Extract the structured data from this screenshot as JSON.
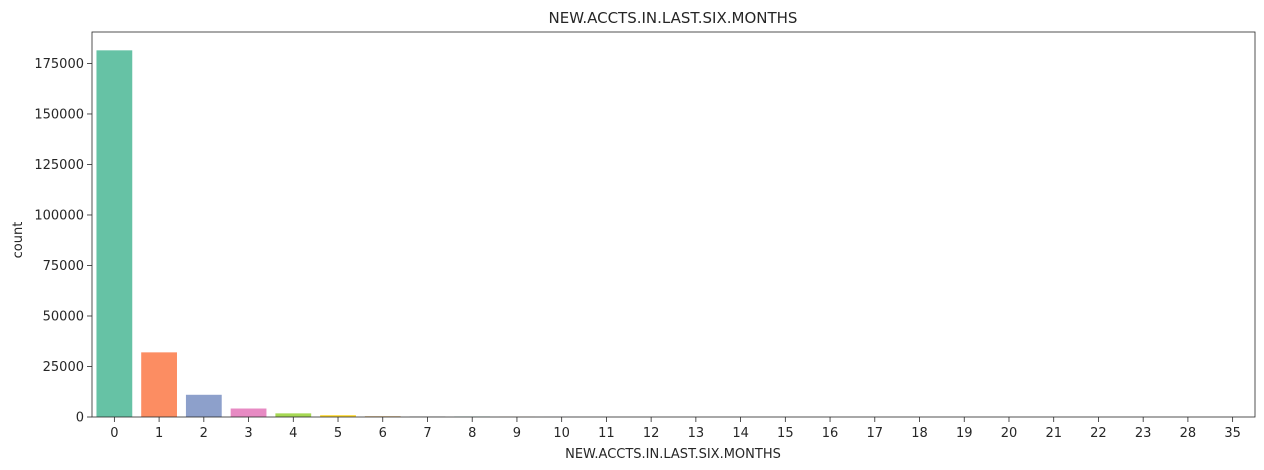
{
  "chart_data": {
    "type": "bar",
    "title": "NEW.ACCTS.IN.LAST.SIX.MONTHS",
    "xlabel": "NEW.ACCTS.IN.LAST.SIX.MONTHS",
    "ylabel": "count",
    "categories": [
      "0",
      "1",
      "2",
      "3",
      "4",
      "5",
      "6",
      "7",
      "8",
      "9",
      "10",
      "11",
      "12",
      "13",
      "14",
      "15",
      "16",
      "17",
      "18",
      "19",
      "20",
      "21",
      "22",
      "23",
      "28",
      "35"
    ],
    "values": [
      181500,
      32000,
      11000,
      4200,
      1800,
      900,
      450,
      250,
      180,
      60,
      30,
      15,
      10,
      6,
      4,
      3,
      2,
      2,
      1,
      1,
      1,
      1,
      1,
      1,
      1,
      1
    ],
    "colors": [
      "#66c2a5",
      "#fc8d62",
      "#8da0cb",
      "#e78ac3",
      "#a6d854",
      "#ffd92f",
      "#e5c494",
      "#b3b3b3"
    ],
    "ylim": [
      0,
      190575
    ],
    "yticks": [
      0,
      25000,
      50000,
      75000,
      100000,
      125000,
      150000,
      175000
    ],
    "grid": false,
    "legend": "none"
  }
}
